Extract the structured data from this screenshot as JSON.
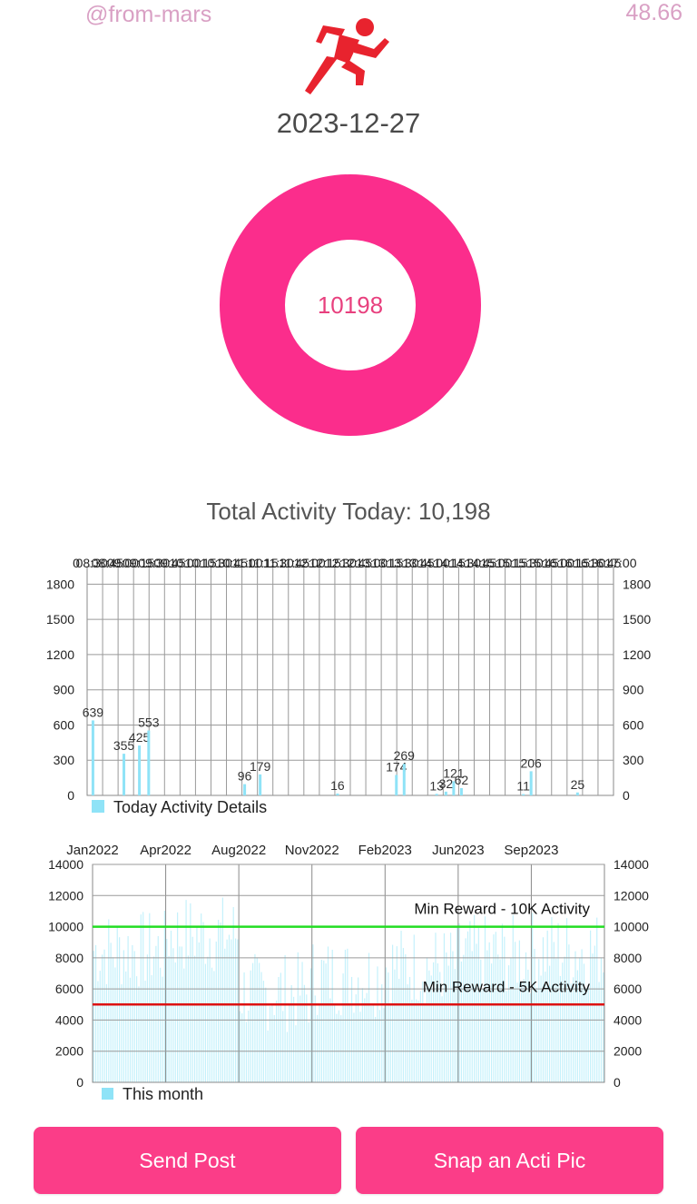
{
  "header": {
    "username": "@from-mars",
    "balance": "48.66",
    "logo_icon": "running-person-icon",
    "date": "2023-12-27"
  },
  "summary": {
    "donut_value": "10198",
    "donut_color": "#fb2d8c",
    "total_label": "Total Activity Today: 10,198"
  },
  "actions": {
    "send_post": "Send Post",
    "snap_pic": "Snap an Acti Pic"
  },
  "chart_data": [
    {
      "type": "bar",
      "legend": "Today Activity Details",
      "legend_placement": "bottom-left",
      "color": "#8fe3f7",
      "x_tick_labels_top": [
        "0",
        "08:30",
        "08:45",
        "09:00",
        "09:15",
        "09:30",
        "09:45",
        "10:00",
        "10:15",
        "10:30",
        "10:45",
        "11:00",
        "11:15",
        "11:30",
        "11:45",
        "12:00",
        "12:15",
        "12:30",
        "12:45",
        "13:00",
        "13:15",
        "13:30",
        "13:45",
        "14:00",
        "14:15",
        "14:30",
        "14:45",
        "15:00",
        "15:15",
        "15:30",
        "15:45",
        "16:00",
        "16:15",
        "16:30",
        "16:45",
        "17:00"
      ],
      "ylim": [
        0,
        1950
      ],
      "y_ticks": [
        0,
        300,
        600,
        900,
        1200,
        1500,
        1800
      ],
      "grid": true,
      "n_slots": 34,
      "bars": [
        {
          "slot": 0.2,
          "value": 639
        },
        {
          "slot": 2.2,
          "value": 355
        },
        {
          "slot": 3.2,
          "value": 425
        },
        {
          "slot": 3.8,
          "value": 553
        },
        {
          "slot": 10.0,
          "value": 96
        },
        {
          "slot": 11.0,
          "value": 179
        },
        {
          "slot": 16.0,
          "value": 16
        },
        {
          "slot": 19.8,
          "value": 174
        },
        {
          "slot": 20.3,
          "value": 269
        },
        {
          "slot": 22.4,
          "value": 13
        },
        {
          "slot": 23.0,
          "value": 32
        },
        {
          "slot": 23.5,
          "value": 121
        },
        {
          "slot": 24.0,
          "value": 62
        },
        {
          "slot": 28.0,
          "value": 11
        },
        {
          "slot": 28.5,
          "value": 206
        },
        {
          "slot": 31.5,
          "value": 25
        }
      ]
    },
    {
      "type": "bar",
      "legend": "This month",
      "legend_placement": "bottom-left",
      "color": "#c5f1fb",
      "x_tick_labels": [
        "Jan2022",
        "Apr2022",
        "Aug2022",
        "Nov2022",
        "Feb2023",
        "Jun2023",
        "Sep2023"
      ],
      "ylim": [
        0,
        14000
      ],
      "y_ticks": [
        0,
        2000,
        4000,
        6000,
        8000,
        10000,
        12000,
        14000
      ],
      "grid": true,
      "reference_lines": [
        {
          "value": 10000,
          "label": "Min Reward - 10K Activity",
          "color": "#22dd22"
        },
        {
          "value": 5000,
          "label": "Min Reward - 5K Activity",
          "color": "#dd1111"
        }
      ],
      "period_levels": [
        {
          "period": "Jan2022",
          "typical": 8500
        },
        {
          "period": "Apr2022",
          "typical": 9500
        },
        {
          "period": "Aug2022",
          "typical": 5800
        },
        {
          "period": "Nov2022",
          "typical": 6800
        },
        {
          "period": "Feb2023",
          "typical": 7500
        },
        {
          "period": "Jun2023",
          "typical": 8200
        },
        {
          "period": "Sep2023",
          "typical": 8500
        }
      ]
    }
  ]
}
